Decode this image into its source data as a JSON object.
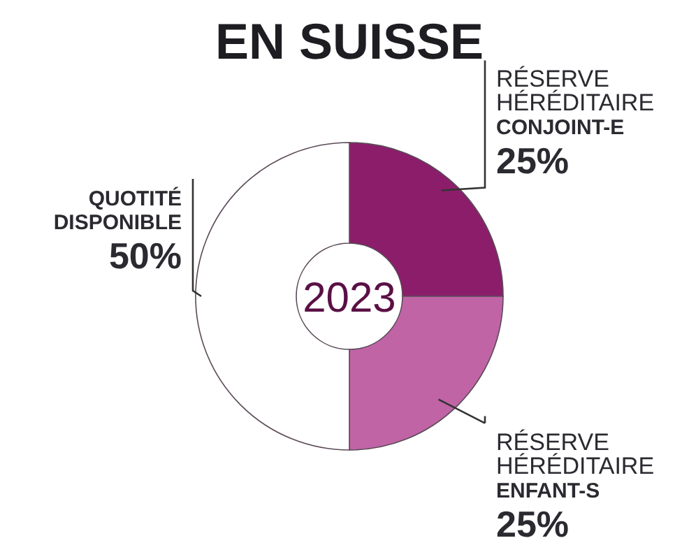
{
  "chart_data": {
    "type": "donut",
    "title": "EN SUISSE",
    "categories": [
      "RÉSERVE\nHÉRÉDITAIRE\nCONJOINT-E",
      "RÉSERVE\nHÉRÉDITAIRE\nENFANT-S",
      "QUOTITÉ\nDISPONIBLE"
    ],
    "values": [
      25,
      25,
      50
    ],
    "colors": [
      "#8c1d6b",
      "#c064a6",
      "#ffffff"
    ],
    "value_labels": [
      "25%",
      "25%",
      "50%"
    ],
    "annotations": [
      "2023"
    ]
  }
}
